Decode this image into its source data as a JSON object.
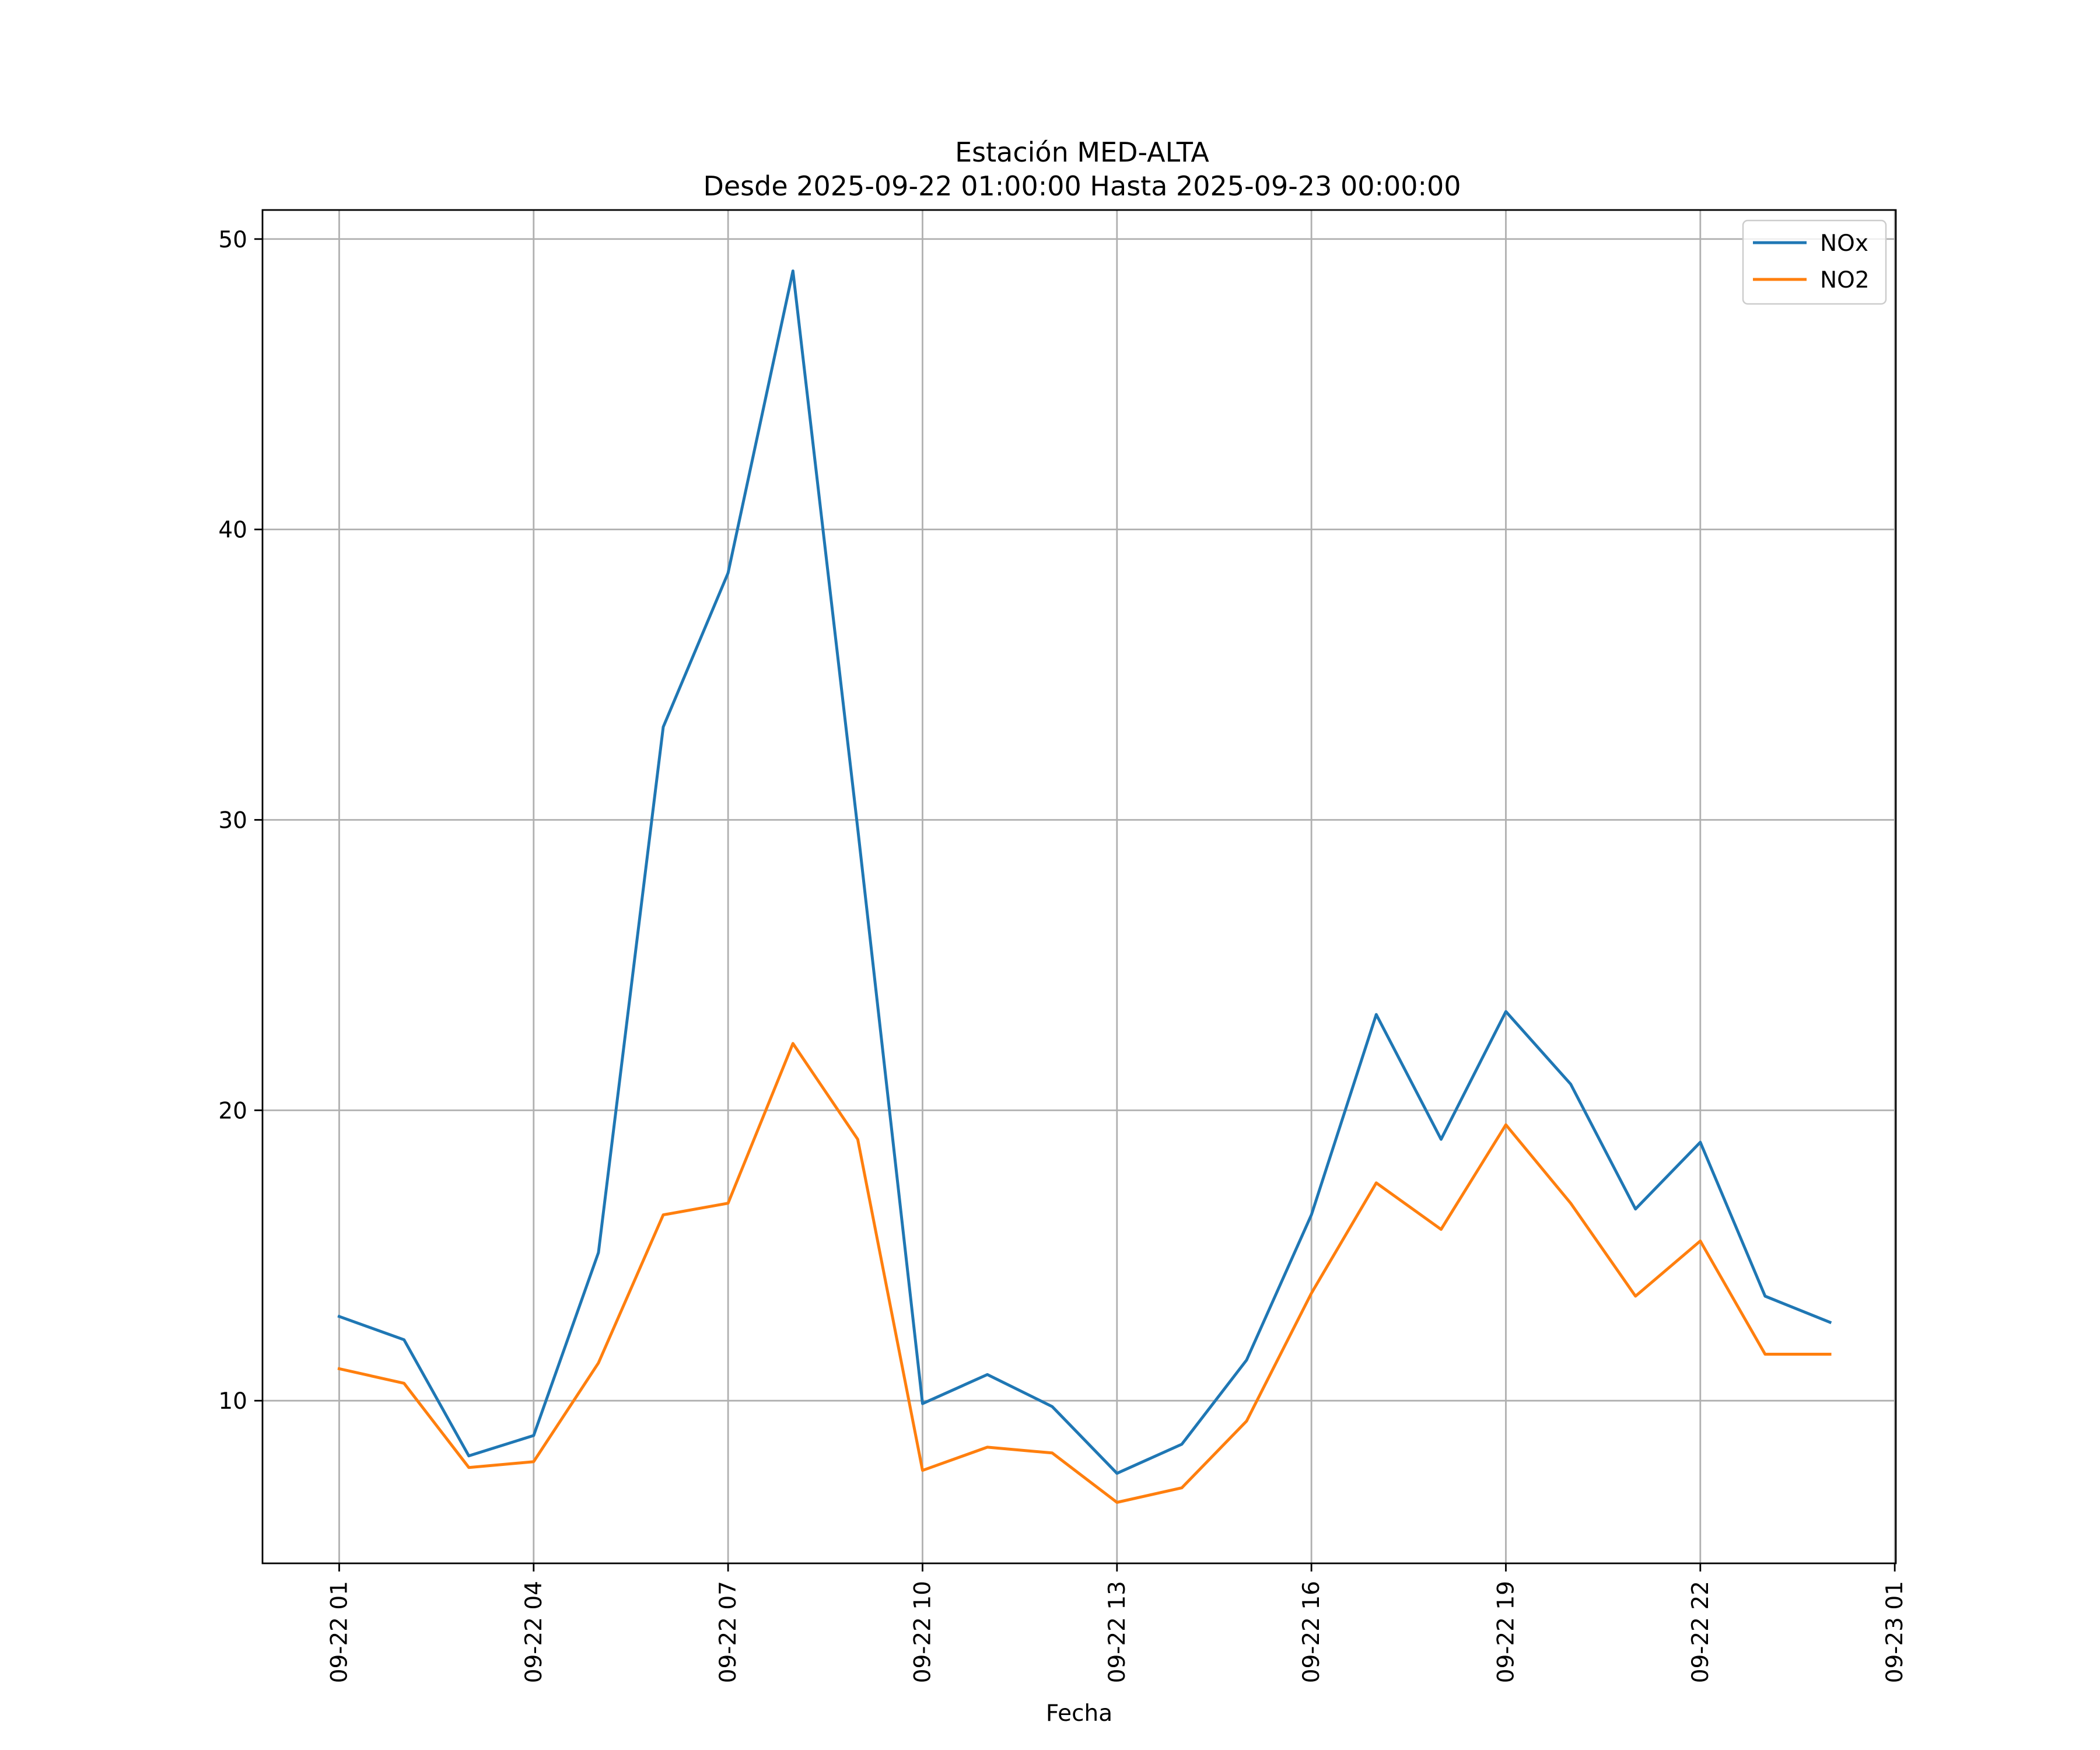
{
  "chart_data": {
    "type": "line",
    "title": "Estación MED-ALTA",
    "subtitle": "Desde 2025-09-22 01:00:00 Hasta 2025-09-23 00:00:00",
    "xlabel": "Fecha",
    "ylabel": "",
    "x": [
      "2025-09-22 01:00",
      "2025-09-22 02:00",
      "2025-09-22 03:00",
      "2025-09-22 04:00",
      "2025-09-22 05:00",
      "2025-09-22 06:00",
      "2025-09-22 07:00",
      "2025-09-22 08:00",
      "2025-09-22 09:00",
      "2025-09-22 10:00",
      "2025-09-22 11:00",
      "2025-09-22 12:00",
      "2025-09-22 13:00",
      "2025-09-22 14:00",
      "2025-09-22 15:00",
      "2025-09-22 16:00",
      "2025-09-22 17:00",
      "2025-09-22 18:00",
      "2025-09-22 19:00",
      "2025-09-22 20:00",
      "2025-09-22 21:00",
      "2025-09-22 22:00",
      "2025-09-22 23:00",
      "2025-09-23 00:00"
    ],
    "series": [
      {
        "name": "NOx",
        "color": "#1f77b4",
        "values": [
          12.9,
          12.1,
          8.1,
          8.8,
          15.1,
          33.2,
          38.5,
          48.9,
          29.7,
          9.9,
          10.9,
          9.8,
          7.5,
          8.5,
          11.4,
          16.4,
          23.3,
          19.0,
          23.4,
          20.9,
          16.6,
          18.9,
          13.6,
          12.7
        ]
      },
      {
        "name": "NO2",
        "color": "#ff7f0e",
        "values": [
          11.1,
          10.6,
          7.7,
          7.9,
          11.3,
          16.4,
          16.8,
          22.3,
          19.0,
          7.6,
          8.4,
          8.2,
          6.5,
          7.0,
          9.3,
          13.7,
          17.5,
          15.9,
          19.5,
          16.8,
          13.6,
          15.5,
          11.6,
          11.6
        ]
      }
    ],
    "xticks": [
      "2025-09-22 01:00",
      "2025-09-22 04:00",
      "2025-09-22 07:00",
      "2025-09-22 10:00",
      "2025-09-22 13:00",
      "2025-09-22 16:00",
      "2025-09-22 19:00",
      "2025-09-22 22:00",
      "2025-09-23 01:00"
    ],
    "xtick_labels": [
      "09-22 01",
      "09-22 04",
      "09-22 07",
      "09-22 10",
      "09-22 13",
      "09-22 16",
      "09-22 19",
      "09-22 22",
      "09-23 01"
    ],
    "xlim": [
      "2025-09-21 23:49",
      "2025-09-23 01:01"
    ],
    "yticks": [
      10,
      20,
      30,
      40,
      50
    ],
    "ytick_labels": [
      "10",
      "20",
      "30",
      "40",
      "50"
    ],
    "ylim": [
      4.4,
      51.0
    ],
    "grid": true,
    "legend_position": "top-right"
  }
}
